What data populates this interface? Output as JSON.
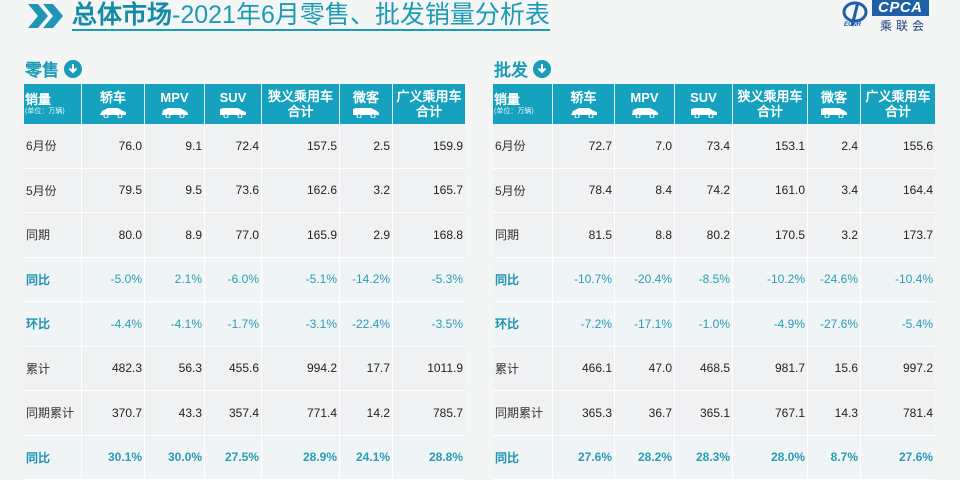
{
  "header": {
    "title_bold": "总体市场",
    "title_rest": "-2021年6月零售、批发销量分析表",
    "logo": {
      "brand": "CPCA",
      "brand_cn": "乘联会",
      "sub": "ECNR"
    }
  },
  "watermark": "CPCA乘联会",
  "columns": {
    "label_main": "销量",
    "label_unit": "(单位：万辆)",
    "items": [
      {
        "line1": "轿车",
        "line2": "",
        "icon": "sedan-icon"
      },
      {
        "line1": "MPV",
        "line2": "",
        "icon": "mpv-icon"
      },
      {
        "line1": "SUV",
        "line2": "",
        "icon": "suv-icon"
      },
      {
        "line1": "狭义乘用车",
        "line2": "合计",
        "icon": ""
      },
      {
        "line1": "微客",
        "line2": "",
        "icon": "minivan-icon"
      },
      {
        "line1": "广义乘用车",
        "line2": "合计",
        "icon": ""
      }
    ]
  },
  "retail": {
    "section_label": "零售",
    "rows": [
      {
        "label": "6月份",
        "values": [
          "76.0",
          "9.1",
          "72.4",
          "157.5",
          "2.5",
          "159.9"
        ]
      },
      {
        "label": "5月份",
        "values": [
          "79.5",
          "9.5",
          "73.6",
          "162.6",
          "3.2",
          "165.7"
        ]
      },
      {
        "label": "同期",
        "values": [
          "80.0",
          "8.9",
          "77.0",
          "165.9",
          "2.9",
          "168.8"
        ]
      },
      {
        "label": "同比",
        "values": [
          "-5.0%",
          "2.1%",
          "-6.0%",
          "-5.1%",
          "-14.2%",
          "-5.3%"
        ]
      },
      {
        "label": "环比",
        "values": [
          "-4.4%",
          "-4.1%",
          "-1.7%",
          "-3.1%",
          "-22.4%",
          "-3.5%"
        ]
      },
      {
        "label": "累计",
        "values": [
          "482.3",
          "56.3",
          "455.6",
          "994.2",
          "17.7",
          "1011.9"
        ]
      },
      {
        "label": "同期累计",
        "values": [
          "370.7",
          "43.3",
          "357.4",
          "771.4",
          "14.2",
          "785.7"
        ]
      },
      {
        "label": "同比",
        "values": [
          "30.1%",
          "30.0%",
          "27.5%",
          "28.9%",
          "24.1%",
          "28.8%"
        ]
      }
    ]
  },
  "wholesale": {
    "section_label": "批发",
    "rows": [
      {
        "label": "6月份",
        "values": [
          "72.7",
          "7.0",
          "73.4",
          "153.1",
          "2.4",
          "155.6"
        ]
      },
      {
        "label": "5月份",
        "values": [
          "78.4",
          "8.4",
          "74.2",
          "161.0",
          "3.4",
          "164.4"
        ]
      },
      {
        "label": "同期",
        "values": [
          "81.5",
          "8.8",
          "80.2",
          "170.5",
          "3.2",
          "173.7"
        ]
      },
      {
        "label": "同比",
        "values": [
          "-10.7%",
          "-20.4%",
          "-8.5%",
          "-10.2%",
          "-24.6%",
          "-10.4%"
        ]
      },
      {
        "label": "环比",
        "values": [
          "-7.2%",
          "-17.1%",
          "-1.0%",
          "-4.9%",
          "-27.6%",
          "-5.4%"
        ]
      },
      {
        "label": "累计",
        "values": [
          "466.1",
          "47.0",
          "468.5",
          "981.7",
          "15.6",
          "997.2"
        ]
      },
      {
        "label": "同期累计",
        "values": [
          "365.3",
          "36.7",
          "365.1",
          "767.1",
          "14.3",
          "781.4"
        ]
      },
      {
        "label": "同比",
        "values": [
          "27.6%",
          "28.2%",
          "28.3%",
          "28.0%",
          "8.7%",
          "27.6%"
        ]
      }
    ]
  },
  "colors": {
    "accent": "#16a1bf",
    "title": "#1b9bb4",
    "pct_text": "#2a9cb3",
    "logo_blue": "#1f5fa8"
  }
}
